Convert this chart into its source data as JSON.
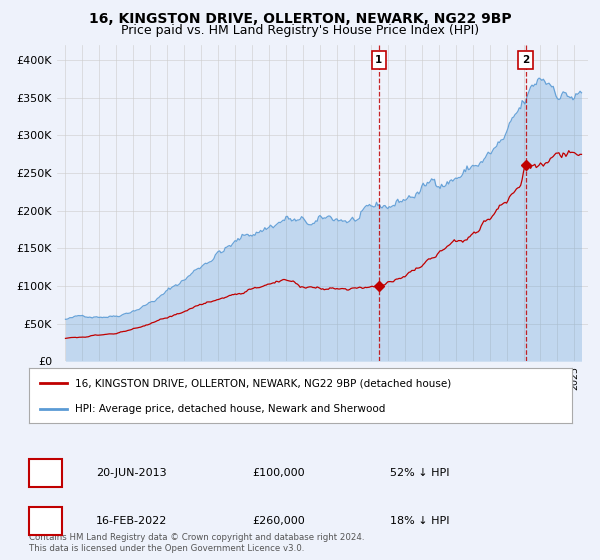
{
  "title": "16, KINGSTON DRIVE, OLLERTON, NEWARK, NG22 9BP",
  "subtitle": "Price paid vs. HM Land Registry's House Price Index (HPI)",
  "ylim": [
    0,
    420000
  ],
  "yticks": [
    0,
    50000,
    100000,
    150000,
    200000,
    250000,
    300000,
    350000,
    400000
  ],
  "ytick_labels": [
    "£0",
    "£50K",
    "£100K",
    "£150K",
    "£200K",
    "£250K",
    "£300K",
    "£350K",
    "£400K"
  ],
  "hpi_color": "#5b9bd5",
  "price_color": "#c00000",
  "marker1_date": 2013.47,
  "marker1_price": 100000,
  "marker2_date": 2022.12,
  "marker2_price": 260000,
  "legend_property": "16, KINGSTON DRIVE, OLLERTON, NEWARK, NG22 9BP (detached house)",
  "legend_hpi": "HPI: Average price, detached house, Newark and Sherwood",
  "background_color": "#eef2fb",
  "plot_bg_color": "#eef2fb",
  "grid_color": "#cccccc",
  "title_fontsize": 10,
  "subtitle_fontsize": 9,
  "footnote": "Contains HM Land Registry data © Crown copyright and database right 2024.\nThis data is licensed under the Open Government Licence v3.0."
}
